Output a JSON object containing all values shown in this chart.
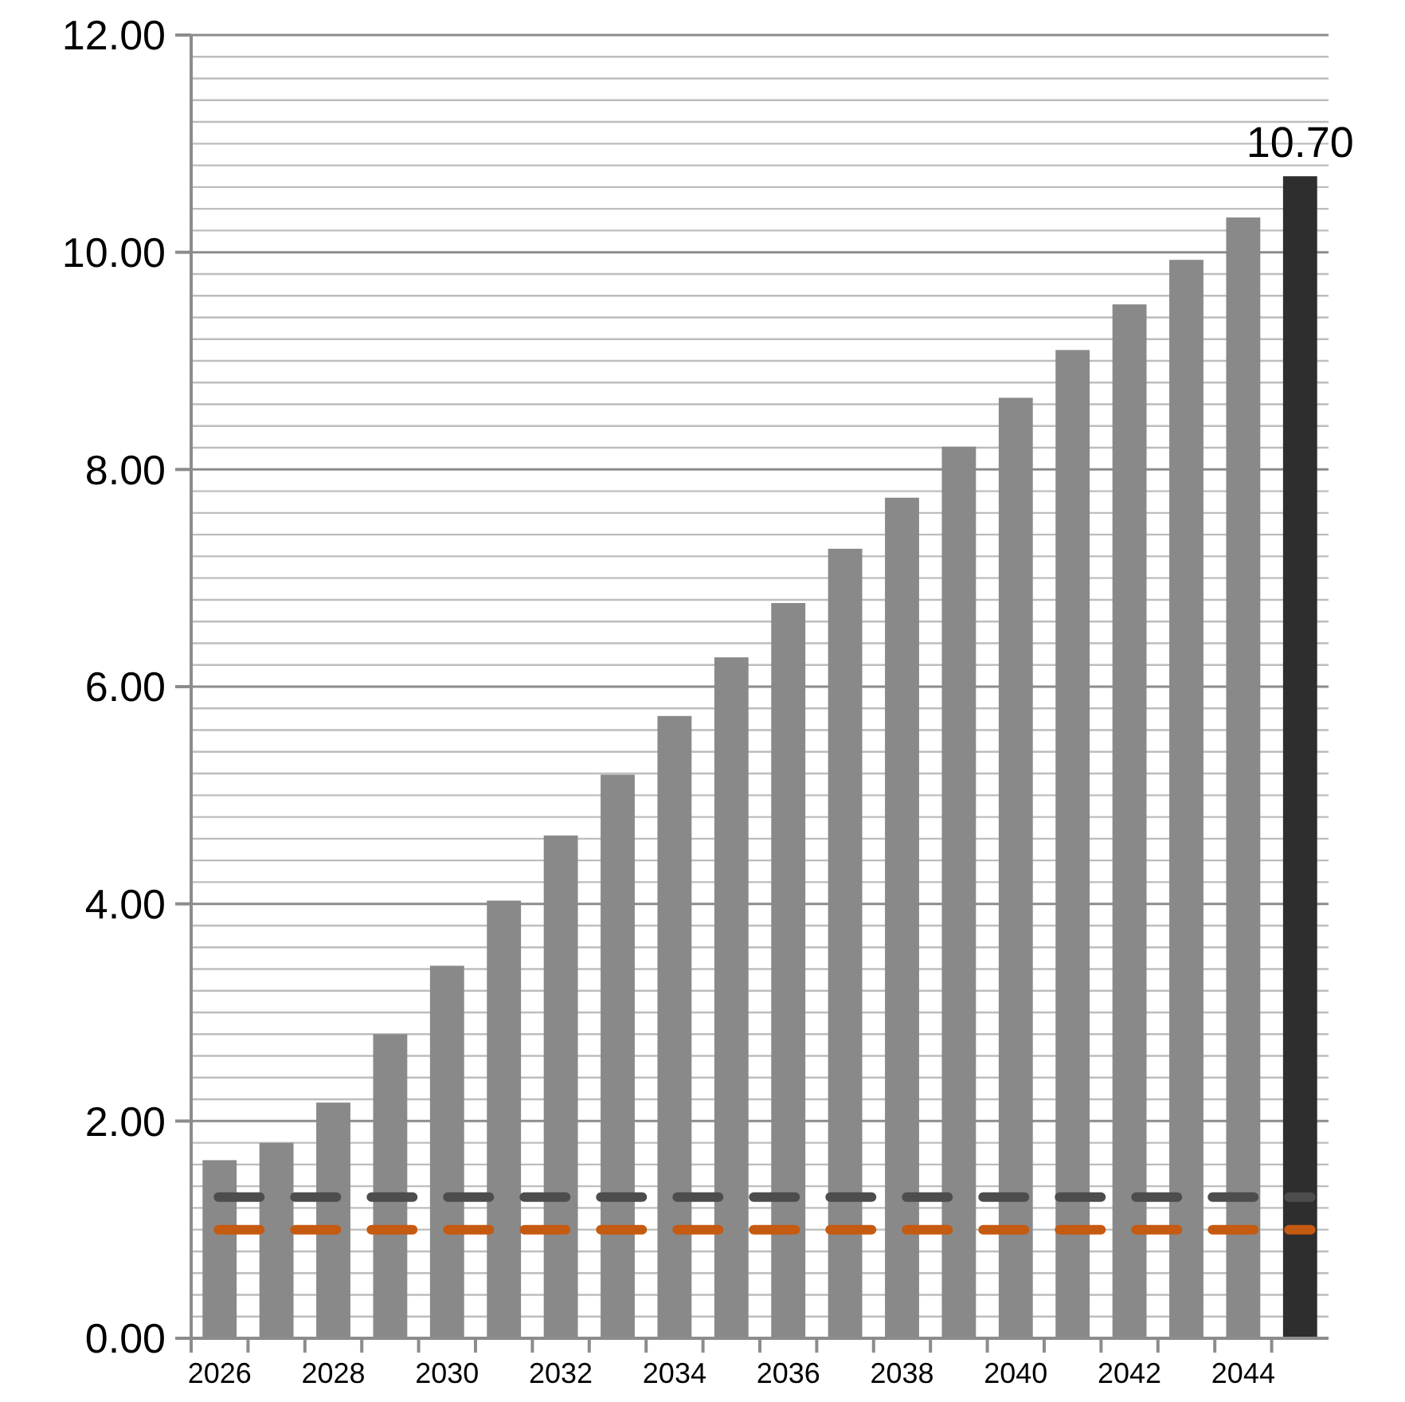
{
  "chart_data": {
    "type": "bar",
    "categories": [
      "2026",
      null,
      "2028",
      null,
      "2030",
      null,
      "2032",
      null,
      "2034",
      null,
      "2036",
      null,
      "2038",
      null,
      "2040",
      null,
      "2042",
      null,
      "2044",
      null
    ],
    "values": [
      1.64,
      1.8,
      2.17,
      2.8,
      3.43,
      4.03,
      4.63,
      5.19,
      5.73,
      6.27,
      6.77,
      7.27,
      7.74,
      8.21,
      8.66,
      9.1,
      9.52,
      9.93,
      10.32,
      10.7
    ],
    "colors": [
      "#898989",
      "#898989",
      "#898989",
      "#898989",
      "#898989",
      "#898989",
      "#898989",
      "#898989",
      "#898989",
      "#898989",
      "#898989",
      "#898989",
      "#898989",
      "#898989",
      "#898989",
      "#898989",
      "#898989",
      "#898989",
      "#898989",
      "#2e2e2e"
    ],
    "value_labels": [
      null,
      null,
      null,
      null,
      null,
      null,
      null,
      null,
      null,
      null,
      null,
      null,
      null,
      null,
      null,
      null,
      null,
      null,
      null,
      "10.70"
    ],
    "ylim": [
      0,
      12
    ],
    "yticks": [
      {
        "value": 0,
        "label": "0.00"
      },
      {
        "value": 0.2,
        "label": null
      },
      {
        "value": 0.4,
        "label": null
      },
      {
        "value": 0.6,
        "label": null
      },
      {
        "value": 0.8,
        "label": null
      },
      {
        "value": 1,
        "label": null
      },
      {
        "value": 1.2,
        "label": null
      },
      {
        "value": 1.4,
        "label": null
      },
      {
        "value": 1.6,
        "label": null
      },
      {
        "value": 1.8,
        "label": null
      },
      {
        "value": 2,
        "label": "2.00"
      },
      {
        "value": 2.2,
        "label": null
      },
      {
        "value": 2.4,
        "label": null
      },
      {
        "value": 2.6,
        "label": null
      },
      {
        "value": 2.8,
        "label": null
      },
      {
        "value": 3,
        "label": null
      },
      {
        "value": 3.2,
        "label": null
      },
      {
        "value": 3.4,
        "label": null
      },
      {
        "value": 3.6,
        "label": null
      },
      {
        "value": 3.8,
        "label": null
      },
      {
        "value": 4,
        "label": "4.00"
      },
      {
        "value": 4.2,
        "label": null
      },
      {
        "value": 4.4,
        "label": null
      },
      {
        "value": 4.6,
        "label": null
      },
      {
        "value": 4.8,
        "label": null
      },
      {
        "value": 5,
        "label": null
      },
      {
        "value": 5.2,
        "label": null
      },
      {
        "value": 5.4,
        "label": null
      },
      {
        "value": 5.6,
        "label": null
      },
      {
        "value": 5.8,
        "label": null
      },
      {
        "value": 6,
        "label": "6.00"
      },
      {
        "value": 6.2,
        "label": null
      },
      {
        "value": 6.4,
        "label": null
      },
      {
        "value": 6.6,
        "label": null
      },
      {
        "value": 6.8,
        "label": null
      },
      {
        "value": 7,
        "label": null
      },
      {
        "value": 7.2,
        "label": null
      },
      {
        "value": 7.4,
        "label": null
      },
      {
        "value": 7.6,
        "label": null
      },
      {
        "value": 7.8,
        "label": null
      },
      {
        "value": 8,
        "label": "8.00"
      },
      {
        "value": 8.2,
        "label": null
      },
      {
        "value": 8.4,
        "label": null
      },
      {
        "value": 8.6,
        "label": null
      },
      {
        "value": 8.8,
        "label": null
      },
      {
        "value": 9,
        "label": null
      },
      {
        "value": 9.2,
        "label": null
      },
      {
        "value": 9.4,
        "label": null
      },
      {
        "value": 9.6,
        "label": null
      },
      {
        "value": 9.8,
        "label": null
      },
      {
        "value": 10,
        "label": "10.00"
      },
      {
        "value": 10.2,
        "label": null
      },
      {
        "value": 10.4,
        "label": null
      },
      {
        "value": 10.6,
        "label": null
      },
      {
        "value": 10.8,
        "label": null
      },
      {
        "value": 11,
        "label": null
      },
      {
        "value": 11.2,
        "label": null
      },
      {
        "value": 11.4,
        "label": null
      },
      {
        "value": 11.6,
        "label": null
      },
      {
        "value": 11.8,
        "label": null
      },
      {
        "value": 12,
        "label": "12.00"
      }
    ],
    "grid": "y",
    "ref_lines": [
      {
        "axis": "y",
        "value": 1.3,
        "color": "#4d4d4d",
        "line_style": "dashed"
      },
      {
        "axis": "y",
        "value": 1.0,
        "color": "#c55a11",
        "line_style": "dashed"
      }
    ]
  }
}
